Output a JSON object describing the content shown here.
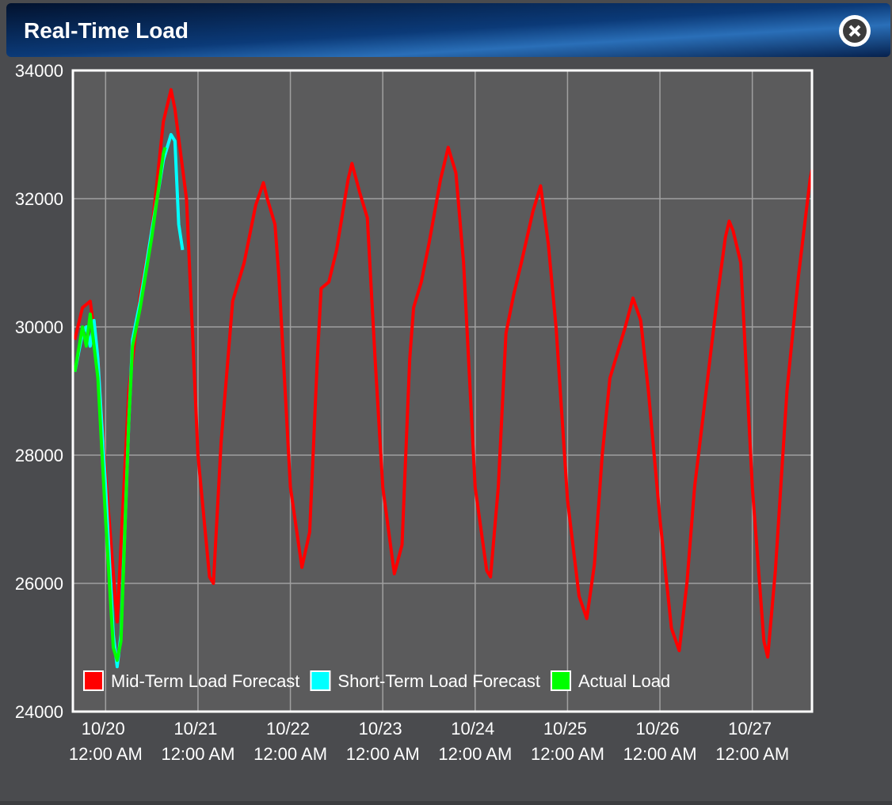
{
  "chart_data": {
    "type": "line",
    "title": "Real-Time Load",
    "xlim": [
      "10/19 3:30 PM",
      "10/27 3:30 PM"
    ],
    "xticks": [
      "10/20 12:00 AM",
      "10/21 12:00 AM",
      "10/22 12:00 AM",
      "10/23 12:00 AM",
      "10/24 12:00 AM",
      "10/25 12:00 AM",
      "10/26 12:00 AM",
      "10/27 12:00 AM"
    ],
    "ylim": [
      24000,
      34000
    ],
    "yticks": [
      24000,
      26000,
      28000,
      30000,
      32000,
      34000
    ],
    "grid": true,
    "legend": "bottom-left",
    "series": [
      {
        "name": "Mid-Term Load Forecast",
        "color": "#ff0000",
        "x": [
          "10/19 4:00 PM",
          "10/19 6:00 PM",
          "10/19 8:00 PM",
          "10/19 10:00 PM",
          "10/20 12:00 AM",
          "10/20 3:00 AM",
          "10/20 6:00 AM",
          "10/20 9:00 AM",
          "10/20 12:00 PM",
          "10/20 3:00 PM",
          "10/20 5:00 PM",
          "10/20 6:00 PM",
          "10/20 9:00 PM",
          "10/21 12:00 AM",
          "10/21 3:00 AM",
          "10/21 4:00 AM",
          "10/21 6:00 AM",
          "10/21 9:00 AM",
          "10/21 12:00 PM",
          "10/21 3:00 PM",
          "10/21 5:00 PM",
          "10/21 6:00 PM",
          "10/21 8:00 PM",
          "10/21 9:00 PM",
          "10/22 12:00 AM",
          "10/22 3:00 AM",
          "10/22 5:00 AM",
          "10/22 7:00 AM",
          "10/22 8:00 AM",
          "10/22 10:00 AM",
          "10/22 12:00 PM",
          "10/22 3:00 PM",
          "10/22 4:00 PM",
          "10/22 6:00 PM",
          "10/22 8:00 PM",
          "10/22 10:00 PM",
          "10/23 12:00 AM",
          "10/23 3:00 AM",
          "10/23 5:00 AM",
          "10/23 7:00 AM",
          "10/23 8:00 AM",
          "10/23 10:00 AM",
          "10/23 12:00 PM",
          "10/23 3:00 PM",
          "10/23 5:00 PM",
          "10/23 7:00 PM",
          "10/23 9:00 PM",
          "10/24 12:00 AM",
          "10/24 3:00 AM",
          "10/24 4:00 AM",
          "10/24 6:00 AM",
          "10/24 8:00 AM",
          "10/24 10:00 AM",
          "10/24 12:00 PM",
          "10/24 3:00 PM",
          "10/24 5:00 PM",
          "10/24 7:00 PM",
          "10/24 9:00 PM",
          "10/25 12:00 AM",
          "10/25 3:00 AM",
          "10/25 5:00 AM",
          "10/25 7:00 AM",
          "10/25 9:00 AM",
          "10/25 11:00 AM",
          "10/25 1:00 PM",
          "10/25 3:00 PM",
          "10/25 5:00 PM",
          "10/25 7:00 PM",
          "10/25 9:00 PM",
          "10/26 12:00 AM",
          "10/26 3:00 AM",
          "10/26 5:00 AM",
          "10/26 7:00 AM",
          "10/26 9:00 AM",
          "10/26 12:00 PM",
          "10/26 3:00 PM",
          "10/26 5:00 PM",
          "10/26 6:00 PM",
          "10/26 7:00 PM",
          "10/26 9:00 PM",
          "10/27 12:00 AM",
          "10/27 3:00 AM",
          "10/27 4:00 AM",
          "10/27 6:00 AM",
          "10/27 9:00 AM",
          "10/27 12:00 PM",
          "10/27 3:00 PM",
          "10/27 3:30 PM"
        ],
        "values": [
          29800,
          30300,
          30400,
          29500,
          27700,
          25400,
          29000,
          30500,
          31500,
          33200,
          33700,
          33400,
          32000,
          28000,
          26100,
          26000,
          28200,
          30400,
          31000,
          31900,
          32250,
          32000,
          31600,
          30800,
          27500,
          26250,
          26800,
          29500,
          30600,
          30700,
          31200,
          32300,
          32550,
          32100,
          31700,
          29500,
          27500,
          26150,
          26600,
          29500,
          30300,
          30700,
          31300,
          32300,
          32800,
          32400,
          31000,
          27500,
          26200,
          26100,
          27500,
          29900,
          30500,
          31000,
          31800,
          32200,
          31300,
          30000,
          27300,
          25800,
          25450,
          26300,
          28000,
          29200,
          29600,
          30000,
          30450,
          30100,
          29000,
          27000,
          25300,
          24950,
          26000,
          27500,
          29000,
          30500,
          31400,
          31650,
          31500,
          31000,
          27500,
          25100,
          24850,
          26200,
          29000,
          30800,
          32300,
          32450
        ]
      },
      {
        "name": "Short-Term Load Forecast",
        "color": "#00ffff",
        "x": [
          "10/19 4:00 PM",
          "10/19 6:00 PM",
          "10/19 7:00 PM",
          "10/19 8:00 PM",
          "10/19 9:00 PM",
          "10/19 10:00 PM",
          "10/20 12:00 AM",
          "10/20 2:00 AM",
          "10/20 3:00 AM",
          "10/20 4:00 AM",
          "10/20 6:00 AM",
          "10/20 7:00 AM",
          "10/20 9:00 AM",
          "10/20 12:00 PM",
          "10/20 3:00 PM",
          "10/20 5:00 PM",
          "10/20 6:00 PM",
          "10/20 7:00 PM",
          "10/20 8:00 PM"
        ],
        "values": [
          29300,
          29900,
          30000,
          29700,
          30100,
          29500,
          27500,
          25200,
          24700,
          25200,
          28500,
          29800,
          30400,
          31500,
          32600,
          33000,
          32900,
          31600,
          31200
        ]
      },
      {
        "name": "Actual Load",
        "color": "#00ff00",
        "x": [
          "10/19 4:00 PM",
          "10/19 6:00 PM",
          "10/19 7:00 PM",
          "10/19 8:00 PM",
          "10/19 10:00 PM",
          "10/20 12:00 AM",
          "10/20 2:00 AM",
          "10/20 3:00 AM",
          "10/20 4:00 AM",
          "10/20 6:00 AM",
          "10/20 7:00 AM",
          "10/20 9:00 AM",
          "10/20 12:00 PM",
          "10/20 3:00 PM",
          "10/20 3:30 PM"
        ],
        "values": [
          29300,
          30000,
          29700,
          30200,
          29200,
          27000,
          25000,
          24800,
          25100,
          28500,
          29700,
          30300,
          31400,
          32700,
          32800
        ]
      }
    ]
  }
}
